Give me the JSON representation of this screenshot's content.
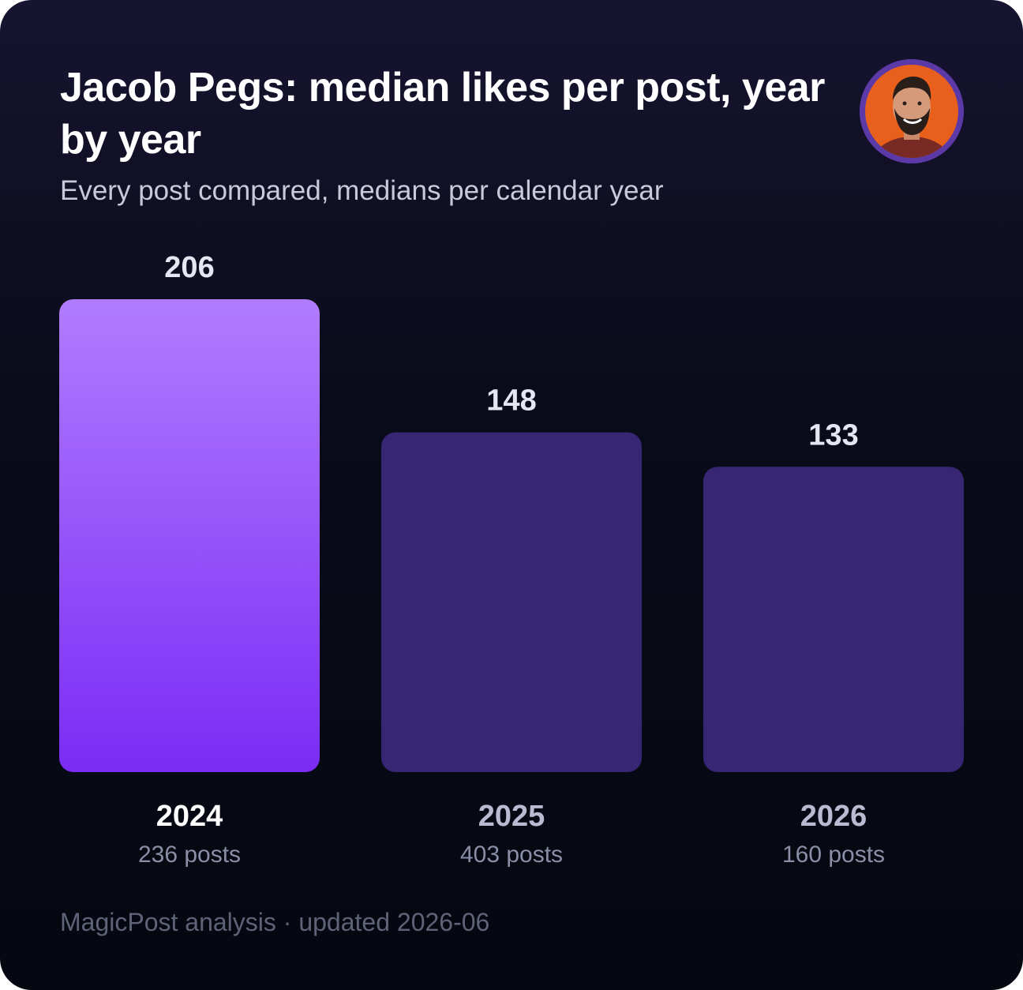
{
  "header": {
    "title": "Jacob Pegs: median likes per post, year by year",
    "subtitle": "Every post compared, medians per calendar year"
  },
  "avatar": {
    "icon": "profile-photo-avatar",
    "ring_color": "#5b3aa8",
    "background_color": "#e8601c"
  },
  "chart_data": {
    "type": "bar",
    "title": "Jacob Pegs: median likes per post, year by year",
    "subtitle": "Every post compared, medians per calendar year",
    "categories": [
      "2024",
      "2025",
      "2026"
    ],
    "values": [
      206,
      148,
      133
    ],
    "category_sublabels": [
      "236 posts",
      "403 posts",
      "160 posts"
    ],
    "data_labels": [
      "206",
      "148",
      "133"
    ],
    "xlabel": "",
    "ylabel": "",
    "ylim": [
      0,
      206
    ],
    "grid": false,
    "legend": "none",
    "highlighted_index": 0,
    "colors": {
      "highlight_top": "#b07cff",
      "highlight_bottom": "#7a2cf5",
      "muted": "#372673",
      "value_label": "#e6e6f2",
      "category_label_highlight": "#ffffff",
      "category_label_muted": "#b9bbd2",
      "sublabel": "#8a8ea6"
    }
  },
  "footer": {
    "text": "MagicPost analysis · updated 2026-06"
  }
}
